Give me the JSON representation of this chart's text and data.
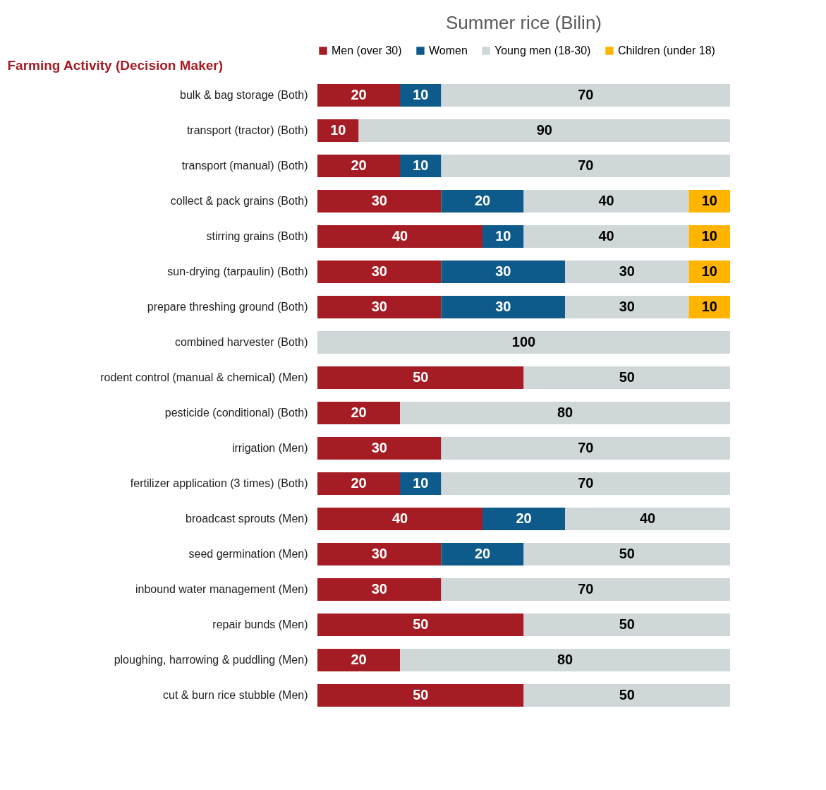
{
  "chart_data": {
    "type": "bar",
    "orientation": "horizontal",
    "stacked": true,
    "title": "Summer rice (Bilin)",
    "ylabel": "Farming Activity (Decision Maker)",
    "categories": [
      "bulk & bag storage (Both)",
      "transport (tractor) (Both)",
      "transport (manual) (Both)",
      "collect & pack grains (Both)",
      "stirring grains (Both)",
      "sun-drying (tarpaulin) (Both)",
      "prepare threshing ground (Both)",
      "combined harvester (Both)",
      "rodent control (manual & chemical) (Men)",
      "pesticide (conditional) (Both)",
      "irrigation (Men)",
      "fertilizer application (3 times) (Both)",
      "broadcast sprouts (Men)",
      "seed germination (Men)",
      "inbound water management (Men)",
      "repair bunds (Men)",
      "ploughing, harrowing & puddling (Men)",
      "cut & burn rice stubble (Men)"
    ],
    "series": [
      {
        "name": "Men (over 30)",
        "color": "#a51c24",
        "values": [
          20,
          10,
          20,
          30,
          40,
          30,
          30,
          null,
          50,
          20,
          30,
          20,
          40,
          30,
          30,
          50,
          20,
          50
        ]
      },
      {
        "name": "Women",
        "color": "#0e5a8a",
        "values": [
          10,
          null,
          10,
          20,
          10,
          30,
          30,
          null,
          null,
          null,
          null,
          10,
          20,
          20,
          null,
          null,
          null,
          null
        ]
      },
      {
        "name": "Young men (18-30)",
        "color": "#d0d7d9",
        "values": [
          70,
          90,
          70,
          40,
          40,
          30,
          30,
          100,
          50,
          80,
          70,
          70,
          40,
          50,
          70,
          50,
          80,
          50
        ]
      },
      {
        "name": "Children (under 18)",
        "color": "#ffb400",
        "values": [
          null,
          null,
          null,
          10,
          10,
          10,
          10,
          null,
          null,
          null,
          null,
          null,
          null,
          null,
          null,
          null,
          null,
          null
        ]
      }
    ],
    "xlim": [
      0,
      100
    ],
    "tick_labels": "y",
    "legend": "top",
    "data_labels": true
  }
}
